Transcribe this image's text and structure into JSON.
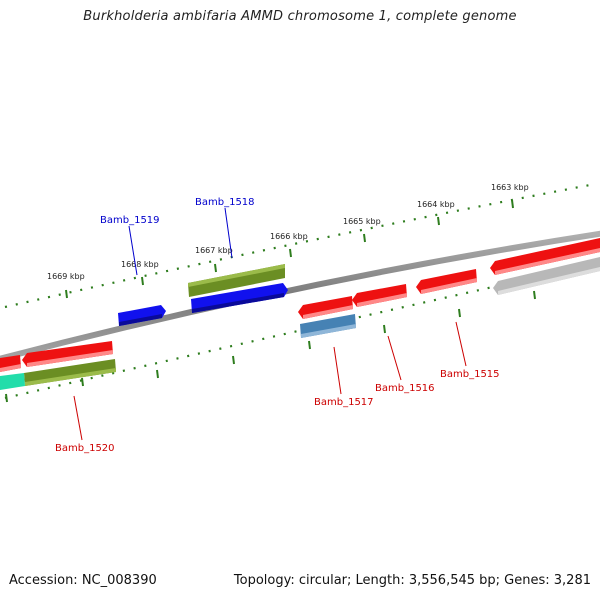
{
  "title": "Burkholderia ambifaria AMMD chromosome 1, complete genome",
  "footer": {
    "accession": "Accession: NC_008390",
    "topology": "Topology: circular; Length: 3,556,545 bp; Genes: 3,281"
  },
  "scale_labels": [
    "1663 kbp",
    "1664 kbp",
    "1665 kbp",
    "1666 kbp",
    "1667 kbp",
    "1668 kbp",
    "1669 kbp"
  ],
  "gene_labels": {
    "bamb_1515": "Bamb_1515",
    "bamb_1516": "Bamb_1516",
    "bamb_1517": "Bamb_1517",
    "bamb_1518": "Bamb_1518",
    "bamb_1519": "Bamb_1519",
    "bamb_1520": "Bamb_1520"
  },
  "colors": {
    "forward_label": "#0000cc",
    "reverse_label": "#cc0000",
    "scale_tick": "#2e7d1e",
    "backbone": "#8a8a8a",
    "red_gene": "#ee1111",
    "blue_gene": "#1111ee",
    "olive_gene": "#6b8e23",
    "steel_gene": "#4682b4",
    "gray_gene": "#b8b8b8",
    "cyan_gene": "#22ddaa"
  }
}
